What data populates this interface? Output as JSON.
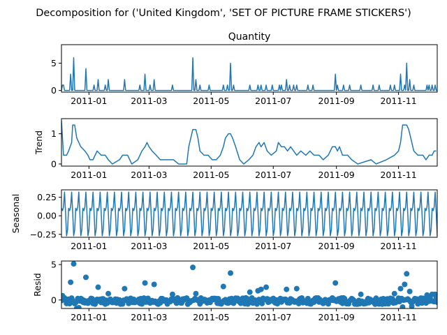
{
  "figure_title": "Decomposition for ('United Kingdom', 'SET OF PICTURE FRAME  STICKERS')",
  "chart_data": [
    {
      "type": "line",
      "name": "observed",
      "title": "Quantity",
      "ylabel": "",
      "ylim": [
        -0.3,
        8.4
      ],
      "yticks": [
        0,
        5
      ],
      "xticks": [
        "2011-01",
        "2011-03",
        "2011-05",
        "2011-07",
        "2011-09",
        "2011-11"
      ],
      "x_range": [
        "2010-12-05",
        "2011-12-09"
      ],
      "color": "#1f77b4",
      "spikes": [
        [
          "2010-12-06",
          1
        ],
        [
          "2010-12-07",
          1
        ],
        [
          "2010-12-14",
          3
        ],
        [
          "2010-12-17",
          6
        ],
        [
          "2010-12-29",
          4
        ],
        [
          "2011-01-06",
          1
        ],
        [
          "2011-01-10",
          2
        ],
        [
          "2011-01-17",
          1
        ],
        [
          "2011-01-20",
          2
        ],
        [
          "2011-02-05",
          2
        ],
        [
          "2011-02-20",
          1
        ],
        [
          "2011-02-25",
          3
        ],
        [
          "2011-03-02",
          1
        ],
        [
          "2011-03-06",
          2
        ],
        [
          "2011-03-24",
          1
        ],
        [
          "2011-04-13",
          6
        ],
        [
          "2011-04-16",
          2
        ],
        [
          "2011-04-20",
          1
        ],
        [
          "2011-04-29",
          1
        ],
        [
          "2011-05-13",
          1
        ],
        [
          "2011-05-17",
          1
        ],
        [
          "2011-05-20",
          5
        ],
        [
          "2011-05-23",
          1
        ],
        [
          "2011-06-08",
          1
        ],
        [
          "2011-06-16",
          1
        ],
        [
          "2011-06-19",
          1
        ],
        [
          "2011-06-24",
          1
        ],
        [
          "2011-06-30",
          1
        ],
        [
          "2011-07-07",
          1
        ],
        [
          "2011-07-09",
          1
        ],
        [
          "2011-07-14",
          2
        ],
        [
          "2011-07-17",
          1
        ],
        [
          "2011-07-21",
          1
        ],
        [
          "2011-07-24",
          1
        ],
        [
          "2011-08-04",
          1
        ],
        [
          "2011-08-09",
          1
        ],
        [
          "2011-08-31",
          3
        ],
        [
          "2011-09-02",
          1
        ],
        [
          "2011-09-08",
          1
        ],
        [
          "2011-09-14",
          1
        ],
        [
          "2011-09-25",
          1
        ],
        [
          "2011-10-07",
          1
        ],
        [
          "2011-10-13",
          1
        ],
        [
          "2011-10-24",
          1
        ],
        [
          "2011-10-28",
          1
        ],
        [
          "2011-11-03",
          3
        ],
        [
          "2011-11-07",
          1
        ],
        [
          "2011-11-09",
          5
        ],
        [
          "2011-11-12",
          2
        ],
        [
          "2011-11-16",
          1
        ],
        [
          "2011-11-29",
          1
        ],
        [
          "2011-12-01",
          1
        ],
        [
          "2011-12-04",
          1
        ],
        [
          "2011-12-07",
          1
        ]
      ]
    },
    {
      "type": "line",
      "name": "trend",
      "title": "",
      "ylabel": "Trend",
      "ylim": [
        -0.07,
        1.5
      ],
      "yticks": [
        0,
        1
      ],
      "xticks": [
        "2011-01",
        "2011-03",
        "2011-05",
        "2011-07",
        "2011-09",
        "2011-11"
      ],
      "x_range": [
        "2010-12-05",
        "2011-12-09"
      ],
      "color": "#1f77b4",
      "points": [
        [
          "2010-12-05",
          1.43
        ],
        [
          "2010-12-07",
          0.29
        ],
        [
          "2010-12-10",
          0.29
        ],
        [
          "2010-12-12",
          0.43
        ],
        [
          "2010-12-15",
          0.71
        ],
        [
          "2010-12-16",
          1.29
        ],
        [
          "2010-12-18",
          1.29
        ],
        [
          "2010-12-20",
          0.86
        ],
        [
          "2010-12-24",
          0.57
        ],
        [
          "2010-12-28",
          0.43
        ],
        [
          "2010-12-31",
          0.29
        ],
        [
          "2011-01-02",
          0.14
        ],
        [
          "2011-01-05",
          0.14
        ],
        [
          "2011-01-07",
          0.29
        ],
        [
          "2011-01-09",
          0.43
        ],
        [
          "2011-01-13",
          0.29
        ],
        [
          "2011-01-17",
          0.29
        ],
        [
          "2011-01-20",
          0.14
        ],
        [
          "2011-01-24",
          0
        ],
        [
          "2011-01-31",
          0.14
        ],
        [
          "2011-02-03",
          0.29
        ],
        [
          "2011-02-08",
          0.29
        ],
        [
          "2011-02-12",
          0
        ],
        [
          "2011-02-18",
          0.14
        ],
        [
          "2011-02-22",
          0.43
        ],
        [
          "2011-02-25",
          0.57
        ],
        [
          "2011-02-27",
          0.71
        ],
        [
          "2011-03-01",
          0.57
        ],
        [
          "2011-03-04",
          0.43
        ],
        [
          "2011-03-08",
          0.29
        ],
        [
          "2011-03-12",
          0.14
        ],
        [
          "2011-03-18",
          0.14
        ],
        [
          "2011-03-21",
          0.14
        ],
        [
          "2011-03-25",
          0.14
        ],
        [
          "2011-03-30",
          0
        ],
        [
          "2011-04-07",
          0
        ],
        [
          "2011-04-09",
          0.57
        ],
        [
          "2011-04-11",
          0.86
        ],
        [
          "2011-04-13",
          1.14
        ],
        [
          "2011-04-16",
          1.14
        ],
        [
          "2011-04-18",
          0.86
        ],
        [
          "2011-04-20",
          0.43
        ],
        [
          "2011-04-24",
          0.29
        ],
        [
          "2011-04-28",
          0.29
        ],
        [
          "2011-05-02",
          0.14
        ],
        [
          "2011-05-06",
          0.14
        ],
        [
          "2011-05-10",
          0.29
        ],
        [
          "2011-05-13",
          0.57
        ],
        [
          "2011-05-15",
          0.86
        ],
        [
          "2011-05-18",
          1
        ],
        [
          "2011-05-20",
          1
        ],
        [
          "2011-05-22",
          0.86
        ],
        [
          "2011-05-25",
          0.57
        ],
        [
          "2011-05-29",
          0.14
        ],
        [
          "2011-06-02",
          0
        ],
        [
          "2011-06-07",
          0.14
        ],
        [
          "2011-06-11",
          0.29
        ],
        [
          "2011-06-14",
          0.57
        ],
        [
          "2011-06-17",
          0.71
        ],
        [
          "2011-06-19",
          0.57
        ],
        [
          "2011-06-22",
          0.71
        ],
        [
          "2011-06-25",
          0.43
        ],
        [
          "2011-06-29",
          0.29
        ],
        [
          "2011-07-04",
          0.43
        ],
        [
          "2011-07-06",
          0.71
        ],
        [
          "2011-07-09",
          0.57
        ],
        [
          "2011-07-12",
          0.57
        ],
        [
          "2011-07-15",
          0.43
        ],
        [
          "2011-07-18",
          0.57
        ],
        [
          "2011-07-21",
          0.43
        ],
        [
          "2011-07-24",
          0.29
        ],
        [
          "2011-07-28",
          0.43
        ],
        [
          "2011-08-02",
          0.29
        ],
        [
          "2011-08-06",
          0.43
        ],
        [
          "2011-08-10",
          0.29
        ],
        [
          "2011-08-15",
          0.29
        ],
        [
          "2011-08-19",
          0.14
        ],
        [
          "2011-08-24",
          0.29
        ],
        [
          "2011-08-28",
          0.57
        ],
        [
          "2011-08-31",
          0.57
        ],
        [
          "2011-09-02",
          0.43
        ],
        [
          "2011-09-04",
          0.57
        ],
        [
          "2011-09-07",
          0.29
        ],
        [
          "2011-09-12",
          0.29
        ],
        [
          "2011-09-16",
          0.14
        ],
        [
          "2011-09-22",
          0
        ],
        [
          "2011-10-05",
          0.14
        ],
        [
          "2011-10-10",
          0
        ],
        [
          "2011-10-20",
          0.14
        ],
        [
          "2011-10-28",
          0.29
        ],
        [
          "2011-11-01",
          0.43
        ],
        [
          "2011-11-03",
          0.71
        ],
        [
          "2011-11-05",
          1.29
        ],
        [
          "2011-11-09",
          1.29
        ],
        [
          "2011-11-11",
          1.14
        ],
        [
          "2011-11-13",
          0.86
        ],
        [
          "2011-11-16",
          0.43
        ],
        [
          "2011-11-20",
          0.29
        ],
        [
          "2011-11-25",
          0.29
        ],
        [
          "2011-11-28",
          0.14
        ],
        [
          "2011-12-01",
          0.29
        ],
        [
          "2011-12-04",
          0.29
        ],
        [
          "2011-12-06",
          0.43
        ],
        [
          "2011-12-08",
          0.43
        ]
      ]
    },
    {
      "type": "line",
      "name": "seasonal",
      "title": "",
      "ylabel": "Seasonal",
      "ylim": [
        -0.29,
        0.35
      ],
      "yticks": [
        0.25,
        0,
        -0.25
      ],
      "ytick_labels": [
        "0.25",
        "0.00",
        "−0.25"
      ],
      "xticks": [
        "2011-01",
        "2011-03",
        "2011-05",
        "2011-07",
        "2011-09",
        "2011-11"
      ],
      "x_range": [
        "2010-12-05",
        "2011-12-09"
      ],
      "period": 7,
      "cycle_values": [
        0.1,
        0.07,
        0.12,
        0.32,
        0.05,
        -0.27,
        -0.19
      ],
      "color": "#1f77b4"
    },
    {
      "type": "scatter",
      "name": "resid",
      "title": "",
      "ylabel": "Resid",
      "ylim": [
        -1.2,
        5.5
      ],
      "yticks": [
        0,
        5
      ],
      "xticks": [
        "2011-01",
        "2011-03",
        "2011-05",
        "2011-07",
        "2011-09",
        "2011-11"
      ],
      "x_range": [
        "2010-12-05",
        "2011-12-09"
      ],
      "color": "#1f77b4",
      "outliers": [
        [
          "2010-12-06",
          0.6
        ],
        [
          "2010-12-14",
          2.5
        ],
        [
          "2010-12-17",
          5.1
        ],
        [
          "2010-12-29",
          3.2
        ],
        [
          "2011-01-10",
          1.8
        ],
        [
          "2011-01-20",
          0.9
        ],
        [
          "2011-02-05",
          1.6
        ],
        [
          "2011-02-25",
          2.4
        ],
        [
          "2011-03-06",
          2.2
        ],
        [
          "2011-03-24",
          0.8
        ],
        [
          "2011-04-13",
          4.6
        ],
        [
          "2011-04-16",
          0.9
        ],
        [
          "2011-05-13",
          1.9
        ],
        [
          "2011-05-20",
          3.8
        ],
        [
          "2011-06-08",
          1.1
        ],
        [
          "2011-06-16",
          1.3
        ],
        [
          "2011-06-19",
          1.5
        ],
        [
          "2011-06-24",
          1.8
        ],
        [
          "2011-07-14",
          1.5
        ],
        [
          "2011-07-24",
          1.6
        ],
        [
          "2011-08-31",
          2.4
        ],
        [
          "2011-09-25",
          0.8
        ],
        [
          "2011-10-28",
          0.9
        ],
        [
          "2011-11-03",
          1.6
        ],
        [
          "2011-11-07",
          2.2
        ],
        [
          "2011-11-09",
          3.7
        ],
        [
          "2011-11-12",
          1.2
        ],
        [
          "2011-11-29",
          0.7
        ],
        [
          "2011-12-04",
          0.8
        ],
        [
          "2011-12-07",
          0.8
        ]
      ],
      "baseline_low": -0.6,
      "baseline_high": 0.3,
      "low_dips": [
        [
          "2010-12-20",
          -1.2
        ],
        [
          "2010-12-22",
          -1.1
        ],
        [
          "2011-11-05",
          -1.0
        ],
        [
          "2011-11-14",
          -0.9
        ]
      ]
    }
  ]
}
